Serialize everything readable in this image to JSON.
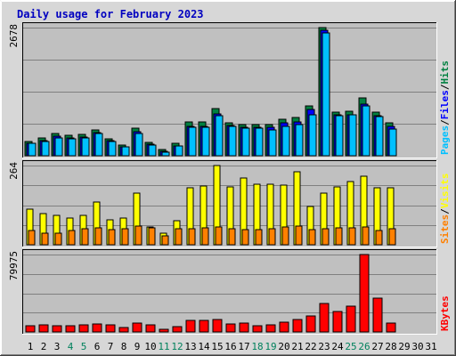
{
  "chart_data": {
    "type": "bar",
    "title": "Daily usage for February 2023",
    "days": [
      "1",
      "2",
      "3",
      "4",
      "5",
      "6",
      "7",
      "8",
      "9",
      "10",
      "11",
      "12",
      "13",
      "14",
      "15",
      "16",
      "17",
      "18",
      "19",
      "20",
      "21",
      "22",
      "23",
      "24",
      "25",
      "26",
      "27",
      "28",
      "29",
      "30",
      "31"
    ],
    "weekend_days": [
      "4",
      "5",
      "11",
      "12",
      "18",
      "19",
      "25",
      "26"
    ],
    "colors": {
      "background": "#C0C0C0",
      "frame_bg": "#D7D7D7",
      "title": "#0000C0",
      "hits": "#008040",
      "files": "#0000FF",
      "pages": "#00C0FF",
      "visits": "#FFFF00",
      "sites": "#FF8000",
      "kbytes": "#FF0000",
      "day_weekday": "#000000",
      "day_weekend": "#00805C"
    },
    "panels": [
      {
        "id": "hits-files-pages",
        "ymax_label": "2678",
        "ymax": 2678,
        "legend": [
          {
            "text": "Pages",
            "color": "#00C0FF"
          },
          {
            "text": "/",
            "color": "#000000"
          },
          {
            "text": "Files",
            "color": "#0000FF"
          },
          {
            "text": "/",
            "color": "#000000"
          },
          {
            "text": "Hits",
            "color": "#008040"
          }
        ],
        "series": [
          {
            "name": "Hits",
            "color": "#008040",
            "values": [
              300,
              376,
              458,
              426,
              442,
              533,
              357,
              230,
              585,
              282,
              128,
              253,
              709,
              701,
              983,
              690,
              658,
              656,
              643,
              763,
              800,
              1050,
              2678,
              910,
              921,
              1200,
              903,
              686,
              null,
              null,
              null
            ]
          },
          {
            "name": "Files",
            "color": "#0000FF",
            "values": [
              260,
              316,
              407,
              370,
              394,
              478,
              316,
              190,
              496,
              238,
              90,
              210,
              620,
              620,
              880,
              630,
              590,
              590,
              590,
              690,
              710,
              960,
              2630,
              860,
              860,
              1080,
              840,
              620,
              null,
              null,
              null
            ]
          },
          {
            "name": "Pages",
            "color": "#00C0FF",
            "values": [
              255,
              300,
              380,
              362,
              380,
              460,
              297,
              180,
              460,
              230,
              80,
              200,
              600,
              600,
              830,
              615,
              570,
              570,
              540,
              610,
              650,
              860,
              2560,
              840,
              850,
              1040,
              810,
              560,
              null,
              null,
              null
            ]
          }
        ]
      },
      {
        "id": "visits-sites",
        "ymax_label": "264",
        "ymax": 264,
        "legend": [
          {
            "text": "Sites",
            "color": "#FF8000"
          },
          {
            "text": "/",
            "color": "#000000"
          },
          {
            "text": "Visits",
            "color": "#FFFF00"
          }
        ],
        "series": [
          {
            "name": "Visits",
            "color": "#FFFF00",
            "values": [
              120,
              103,
              97,
              90,
              99,
              141,
              83,
              89,
              173,
              59,
              39,
              81,
              190,
              195,
              264,
              194,
              223,
              202,
              203,
              198,
              243,
              127,
              171,
              194,
              210,
              229,
              190,
              190,
              null,
              null,
              null
            ]
          },
          {
            "name": "Sites",
            "color": "#FF8000",
            "values": [
              48,
              40,
              40,
              48,
              54,
              56,
              49,
              52,
              62,
              55,
              30,
              52,
              53,
              56,
              60,
              54,
              51,
              51,
              52,
              58,
              62,
              50,
              53,
              55,
              56,
              60,
              48,
              52,
              null,
              null,
              null
            ]
          }
        ]
      },
      {
        "id": "kbytes",
        "ymax_label": "79975",
        "ymax": 79975,
        "legend": [
          {
            "text": "KBytes",
            "color": "#FF0000"
          }
        ],
        "series": [
          {
            "name": "KBytes",
            "color": "#FF0000",
            "values": [
              6600,
              7200,
              6600,
              6600,
              6900,
              8000,
              7200,
              4800,
              9000,
              7000,
              3000,
              5400,
              11500,
              11700,
              12800,
              8300,
              9300,
              6800,
              7200,
              10000,
              12500,
              17000,
              29000,
              21500,
              27000,
              79975,
              35000,
              9000,
              null,
              null,
              null
            ]
          }
        ]
      }
    ]
  }
}
